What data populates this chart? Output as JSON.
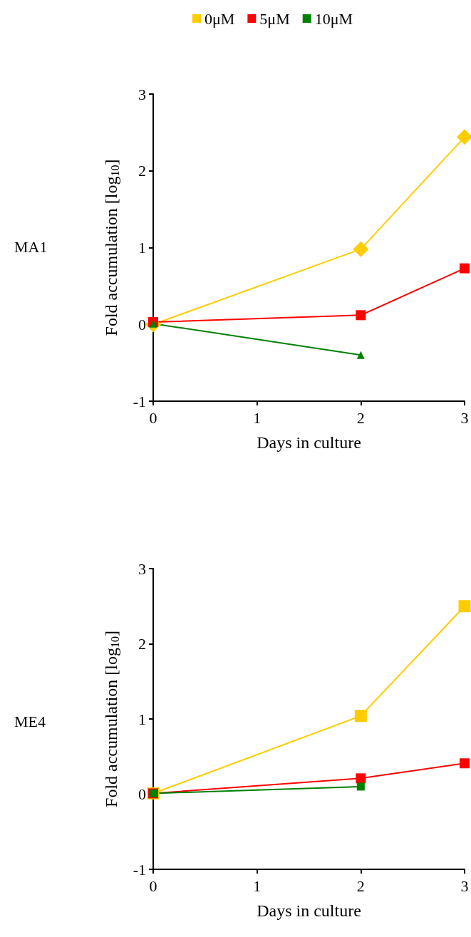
{
  "chart_data": [
    {
      "type": "line",
      "title": "MA1",
      "xlabel": "Days in culture",
      "ylabel": "Fold accumulation [log$_{10}$]",
      "x": [
        0,
        2,
        3
      ],
      "xlim": [
        0,
        3
      ],
      "xticks": [
        0,
        1,
        2,
        3
      ],
      "ylim": [
        -1,
        3
      ],
      "yticks": [
        -1,
        0,
        1,
        2,
        3
      ],
      "grid": false,
      "legend": "top",
      "line_style": "solid",
      "series": [
        {
          "name": "0μM",
          "color": "#ffcc00",
          "marker": "diamond",
          "values": [
            0.0,
            0.98,
            2.44
          ]
        },
        {
          "name": "5μM",
          "color": "#ff0000",
          "marker": "square",
          "values": [
            0.03,
            0.12,
            0.73
          ]
        },
        {
          "name": "10μM",
          "color": "#008000",
          "marker": "triangle",
          "values": [
            0.01,
            -0.4,
            null
          ]
        }
      ]
    },
    {
      "type": "line",
      "title": "ME4",
      "xlabel": "Days in culture",
      "ylabel": "Fold accumulation [log$_{10}$]",
      "x": [
        0,
        2,
        3
      ],
      "xlim": [
        0,
        3
      ],
      "xticks": [
        0,
        1,
        2,
        3
      ],
      "ylim": [
        -1,
        3
      ],
      "yticks": [
        -1,
        0,
        1,
        2,
        3
      ],
      "grid": false,
      "legend": false,
      "marker": "square",
      "line_style": "solid",
      "series": [
        {
          "color": "#ffcc00",
          "values": [
            0.01,
            1.04,
            2.5
          ]
        },
        {
          "color": "#ff0000",
          "values": [
            0.01,
            0.21,
            0.41
          ]
        },
        {
          "color": "#008000",
          "values": [
            0.01,
            0.1,
            null
          ]
        }
      ]
    }
  ]
}
